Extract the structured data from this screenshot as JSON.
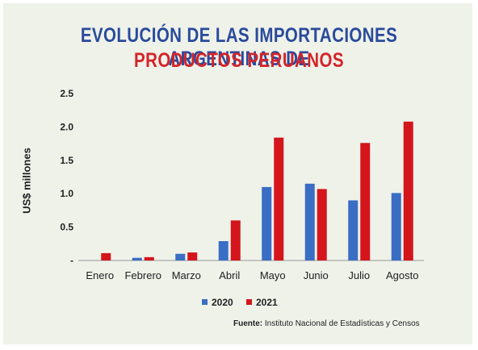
{
  "title_line1": "EVOLUCIÓN DE LAS IMPORTACIONES ARGENTINAS DE",
  "title_line2": "PRODUCTOS PERUANOS",
  "colors": {
    "title1": "#2a4a9c",
    "title2": "#d4242a",
    "panel": "#eef2e9"
  },
  "source_label": "Fuente:",
  "source_text": "Instituto Nacional de Estadísticas y Censos",
  "chart_data": {
    "type": "bar",
    "ylabel": "US$ millones",
    "ylim": [
      0,
      2.5
    ],
    "yticks": [
      "-",
      "0.5",
      "1.0",
      "1.5",
      "2.0",
      "2.5"
    ],
    "ytick_values": [
      0,
      0.5,
      1.0,
      1.5,
      2.0,
      2.5
    ],
    "grid": false,
    "legend_position": "bottom-center",
    "categories": [
      "Enero",
      "Febrero",
      "Marzo",
      "Abril",
      "Mayo",
      "Junio",
      "Julio",
      "Agosto"
    ],
    "series": [
      {
        "name": "2020",
        "color": "#3a6dc4",
        "values": [
          0,
          0.04,
          0.1,
          0.29,
          1.1,
          1.15,
          0.9,
          1.01
        ]
      },
      {
        "name": "2021",
        "color": "#d4151c",
        "values": [
          0.11,
          0.05,
          0.12,
          0.6,
          1.84,
          1.07,
          1.76,
          2.08
        ]
      }
    ]
  }
}
